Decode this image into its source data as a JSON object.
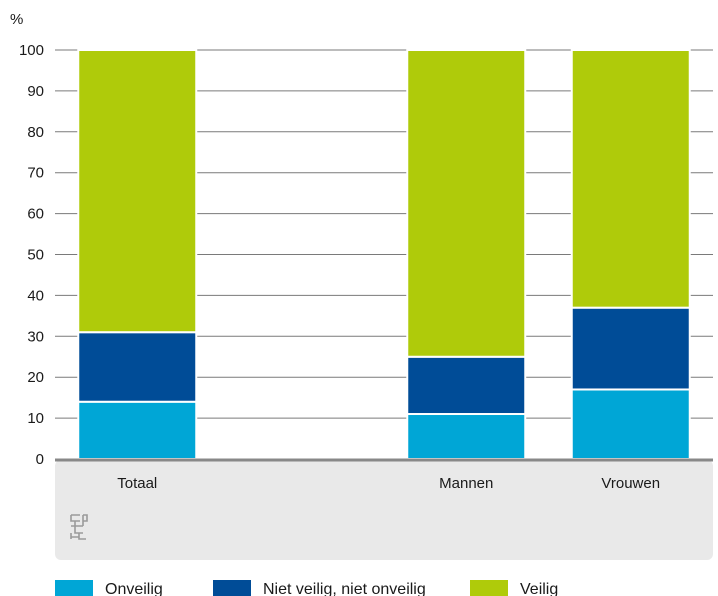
{
  "chart_data": {
    "type": "bar",
    "stacked": true,
    "y_unit": "%",
    "ylim": [
      0,
      100
    ],
    "yticks": [
      0,
      10,
      20,
      30,
      40,
      50,
      60,
      70,
      80,
      90,
      100
    ],
    "grid": true,
    "categories": [
      "Totaal",
      "",
      "Mannen",
      "Vrouwen"
    ],
    "series": [
      {
        "name": "Onveilig",
        "color": "#00a6d6",
        "values": [
          14,
          null,
          11,
          17
        ]
      },
      {
        "name": "Niet veilig, niet onveilig",
        "color": "#004c97",
        "values": [
          17,
          null,
          14,
          20
        ]
      },
      {
        "name": "Veilig",
        "color": "#afcb0a",
        "values": [
          69,
          null,
          75,
          63
        ]
      }
    ],
    "legend_position": "bottom"
  },
  "branding": {
    "logo_icon": "cbs-logo-icon"
  }
}
